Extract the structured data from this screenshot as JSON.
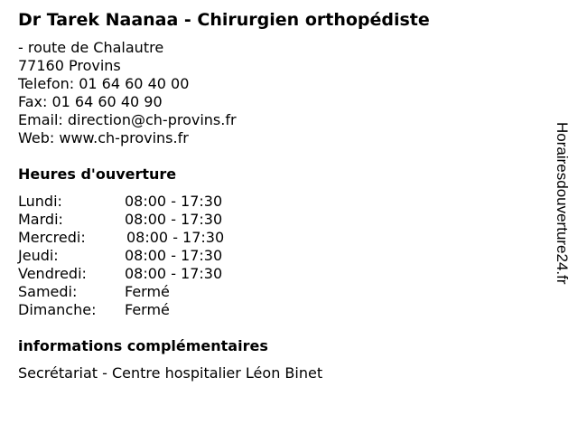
{
  "title": "Dr Tarek Naanaa - Chirurgien orthopédiste",
  "contact": {
    "street": "- route de Chalautre",
    "city": "77160 Provins",
    "phone": "Telefon: 01 64 60 40 00",
    "fax": "Fax: 01 64 60 40 90",
    "email": "Email: direction@ch-provins.fr",
    "web": "Web: www.ch-provins.fr"
  },
  "hours": {
    "heading": "Heures d'ouverture",
    "rows": [
      {
        "day": "Lundi:",
        "time": "08:00 - 17:30"
      },
      {
        "day": "Mardi:",
        "time": "08:00 - 17:30"
      },
      {
        "day": "Mercredi:",
        "time": "08:00 - 17:30"
      },
      {
        "day": "Jeudi:",
        "time": "08:00 - 17:30"
      },
      {
        "day": "Vendredi:",
        "time": "08:00 - 17:30"
      },
      {
        "day": "Samedi:",
        "time": "Fermé"
      },
      {
        "day": "Dimanche:",
        "time": "Fermé"
      }
    ]
  },
  "info": {
    "heading": "informations complémentaires",
    "text": "Secrétariat - Centre hospitalier Léon Binet"
  },
  "watermark": "Horairesdouverture24.fr"
}
